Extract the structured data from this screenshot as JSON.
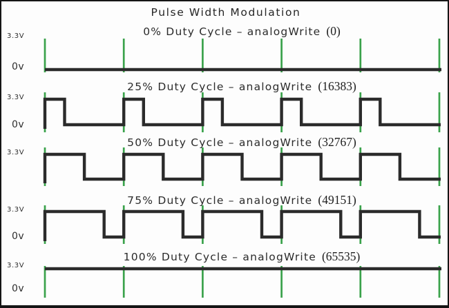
{
  "title": "Pulse Width Modulation",
  "colors": {
    "tick_green": "#3aa24b",
    "waveform_black": "#2b2b2b",
    "text": "#2a2a2a",
    "border": "#151515",
    "background": "#fdfdfd"
  },
  "voltage": {
    "high": "3.3V",
    "low": "0v"
  },
  "periods_shown": 5,
  "sections": [
    {
      "label": "0% Duty Cycle – analogWrite",
      "value_label": "(0)",
      "duty_percent": 0,
      "analog_write": 0,
      "high_label": "3.3V",
      "low_label": "0v"
    },
    {
      "label": "25% Duty Cycle – analogWrite",
      "value_label": "(16383)",
      "duty_percent": 25,
      "analog_write": 16383,
      "high_label": "3.3V",
      "low_label": "0v"
    },
    {
      "label": "50% Duty Cycle – analogWrite",
      "value_label": "(32767)",
      "duty_percent": 50,
      "analog_write": 32767,
      "high_label": "3.3V",
      "low_label": ""
    },
    {
      "label": "75% Duty Cycle – analogWrite",
      "value_label": "(49151)",
      "duty_percent": 75,
      "analog_write": 49151,
      "high_label": "3.3V",
      "low_label": "0v"
    },
    {
      "label": "100% Duty Cycle – analogWrite",
      "value_label": "(65535)",
      "duty_percent": 100,
      "analog_write": 65535,
      "high_label": "3.3V",
      "low_label": "0v"
    }
  ]
}
